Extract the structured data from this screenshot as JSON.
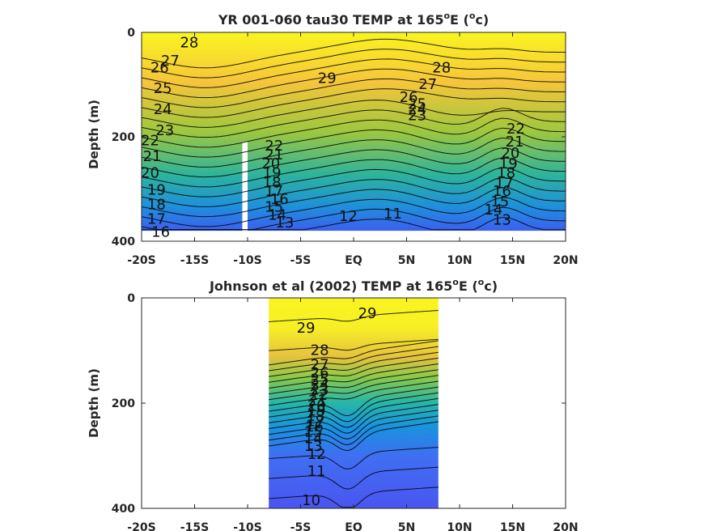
{
  "chart_data": [
    {
      "type": "contour",
      "title": "YR 001-060 tau30 TEMP at 165",
      "title_degree": "o",
      "title_tail": "E (",
      "title_unit_degree": "o",
      "title_unit_tail": "c)",
      "ylabel": "Depth (m)",
      "xlim": [
        -20,
        20
      ],
      "ylim": [
        0,
        400
      ],
      "y_reversed": true,
      "x_ticks": [
        -20,
        -15,
        -10,
        -5,
        0,
        5,
        10,
        15,
        20
      ],
      "x_tick_labels": [
        "-20S",
        "-15S",
        "-10S",
        "-5S",
        "EQ",
        "5N",
        "10N",
        "15N",
        "20N"
      ],
      "y_ticks": [
        0,
        200,
        400
      ],
      "y_tick_labels": [
        "0",
        "200",
        "400"
      ],
      "data_extent_x": [
        -20,
        20
      ],
      "data_extent_y": [
        0,
        380
      ],
      "masked_column_x": [
        -10.5,
        -10
      ],
      "masked_column_y": [
        210,
        380
      ],
      "colormap": "parula",
      "color_limits": [
        9,
        30
      ],
      "contour_levels": [
        11,
        12,
        13,
        14,
        15,
        16,
        17,
        18,
        19,
        20,
        21,
        22,
        23,
        24,
        25,
        26,
        27,
        28,
        29
      ],
      "contour_labels": [
        {
          "v": "28",
          "lon": -15.5,
          "d": 20
        },
        {
          "v": "27",
          "lon": -17.3,
          "d": 55
        },
        {
          "v": "26",
          "lon": -18.3,
          "d": 68
        },
        {
          "v": "25",
          "lon": -18.0,
          "d": 108
        },
        {
          "v": "24",
          "lon": -18.0,
          "d": 148
        },
        {
          "v": "23",
          "lon": -17.8,
          "d": 188
        },
        {
          "v": "22",
          "lon": -19.2,
          "d": 208
        },
        {
          "v": "21",
          "lon": -19.0,
          "d": 238
        },
        {
          "v": "20",
          "lon": -19.2,
          "d": 270
        },
        {
          "v": "19",
          "lon": -18.6,
          "d": 302
        },
        {
          "v": "18",
          "lon": -18.6,
          "d": 330
        },
        {
          "v": "17",
          "lon": -18.6,
          "d": 358
        },
        {
          "v": "16",
          "lon": -18.2,
          "d": 383
        },
        {
          "v": "29",
          "lon": -2.5,
          "d": 88
        },
        {
          "v": "28",
          "lon": 8.3,
          "d": 68
        },
        {
          "v": "27",
          "lon": 7.0,
          "d": 100
        },
        {
          "v": "26",
          "lon": 5.2,
          "d": 125
        },
        {
          "v": "25",
          "lon": 6.0,
          "d": 138
        },
        {
          "v": "24",
          "lon": 6.0,
          "d": 148
        },
        {
          "v": "23",
          "lon": 6.0,
          "d": 160
        },
        {
          "v": "22",
          "lon": -7.5,
          "d": 218
        },
        {
          "v": "21",
          "lon": -7.5,
          "d": 235
        },
        {
          "v": "20",
          "lon": -7.8,
          "d": 252
        },
        {
          "v": "19",
          "lon": -7.7,
          "d": 270
        },
        {
          "v": "18",
          "lon": -7.7,
          "d": 288
        },
        {
          "v": "17",
          "lon": -7.5,
          "d": 305
        },
        {
          "v": "16",
          "lon": -7.0,
          "d": 320
        },
        {
          "v": "15",
          "lon": -7.5,
          "d": 335
        },
        {
          "v": "14",
          "lon": -7.2,
          "d": 350
        },
        {
          "v": "13",
          "lon": -6.5,
          "d": 365
        },
        {
          "v": "12",
          "lon": -0.5,
          "d": 353
        },
        {
          "v": "11",
          "lon": 3.7,
          "d": 348
        },
        {
          "v": "22",
          "lon": 15.3,
          "d": 185
        },
        {
          "v": "21",
          "lon": 15.2,
          "d": 210
        },
        {
          "v": "20",
          "lon": 14.8,
          "d": 232
        },
        {
          "v": "19",
          "lon": 14.6,
          "d": 252
        },
        {
          "v": "18",
          "lon": 14.4,
          "d": 270
        },
        {
          "v": "17",
          "lon": 14.2,
          "d": 290
        },
        {
          "v": "16",
          "lon": 14.0,
          "d": 305
        },
        {
          "v": "15",
          "lon": 13.8,
          "d": 325
        },
        {
          "v": "14",
          "lon": 13.2,
          "d": 340
        },
        {
          "v": "13",
          "lon": 14.0,
          "d": 360
        }
      ]
    },
    {
      "type": "contour",
      "title": "Johnson et al (2002) TEMP at 165",
      "title_degree": "o",
      "title_tail": "E (",
      "title_unit_degree": "o",
      "title_unit_tail": "c)",
      "ylabel": "Depth (m)",
      "xlim": [
        -20,
        20
      ],
      "ylim": [
        0,
        400
      ],
      "y_reversed": true,
      "x_ticks": [
        -20,
        -15,
        -10,
        -5,
        0,
        5,
        10,
        15,
        20
      ],
      "x_tick_labels": [
        "-20S",
        "-15S",
        "-10S",
        "-5S",
        "EQ",
        "5N",
        "10N",
        "15N",
        "20N"
      ],
      "y_ticks": [
        0,
        200,
        400
      ],
      "y_tick_labels": [
        "0",
        "200",
        "400"
      ],
      "data_extent_x": [
        -8,
        8
      ],
      "data_extent_y": [
        0,
        400
      ],
      "colormap": "parula",
      "color_limits": [
        9,
        30
      ],
      "contour_levels": [
        10,
        11,
        12,
        13,
        14,
        15,
        16,
        17,
        18,
        19,
        20,
        21,
        22,
        23,
        24,
        25,
        26,
        27,
        28,
        29
      ],
      "contour_labels": [
        {
          "v": "29",
          "lon": 1.3,
          "d": 30
        },
        {
          "v": "29",
          "lon": -4.5,
          "d": 58
        },
        {
          "v": "28",
          "lon": -3.2,
          "d": 100
        },
        {
          "v": "27",
          "lon": -3.2,
          "d": 128
        },
        {
          "v": "26",
          "lon": -3.2,
          "d": 143
        },
        {
          "v": "25",
          "lon": -3.2,
          "d": 155
        },
        {
          "v": "24",
          "lon": -3.2,
          "d": 165
        },
        {
          "v": "23",
          "lon": -3.2,
          "d": 175
        },
        {
          "v": "22",
          "lon": -3.3,
          "d": 185
        },
        {
          "v": "21",
          "lon": -3.4,
          "d": 195
        },
        {
          "v": "20",
          "lon": -3.5,
          "d": 205
        },
        {
          "v": "19",
          "lon": -3.5,
          "d": 215
        },
        {
          "v": "18",
          "lon": -3.6,
          "d": 225
        },
        {
          "v": "17",
          "lon": -3.6,
          "d": 235
        },
        {
          "v": "16",
          "lon": -3.7,
          "d": 245
        },
        {
          "v": "15",
          "lon": -3.8,
          "d": 255
        },
        {
          "v": "14",
          "lon": -3.8,
          "d": 268
        },
        {
          "v": "13",
          "lon": -3.8,
          "d": 282
        },
        {
          "v": "12",
          "lon": -3.5,
          "d": 298
        },
        {
          "v": "11",
          "lon": -3.5,
          "d": 330
        },
        {
          "v": "10",
          "lon": -4.0,
          "d": 385
        }
      ]
    }
  ]
}
